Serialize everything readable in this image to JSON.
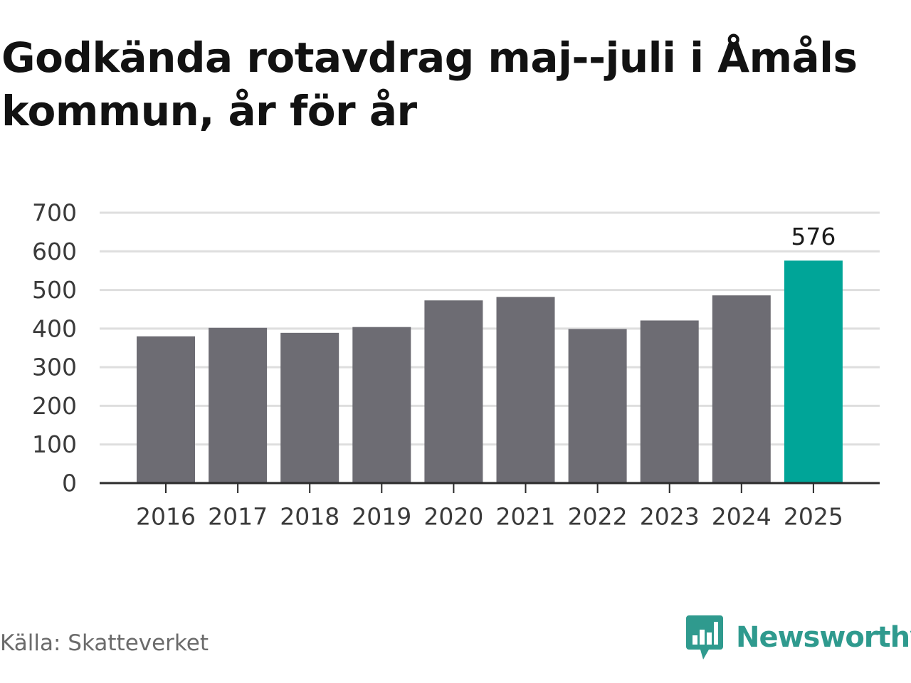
{
  "header": {
    "title": "Godkända rotavdrag maj--juli i Åmåls kommun, år för år"
  },
  "footer": {
    "source": "Källa: Skatteverket",
    "brand": "Newsworthy"
  },
  "colors": {
    "bar": "#6d6c73",
    "highlight": "#00a598",
    "grid": "#dedede",
    "axis": "#2b2b2b",
    "tick_text": "#3a3a3a",
    "brand": "#2f9a8e"
  },
  "icons": {
    "logo": "newsworthy-logo-icon"
  },
  "chart_data": {
    "type": "bar",
    "title": "Godkända rotavdrag maj--juli i Åmåls kommun, år för år",
    "xlabel": "",
    "ylabel": "",
    "categories": [
      "2016",
      "2017",
      "2018",
      "2019",
      "2020",
      "2021",
      "2022",
      "2023",
      "2024",
      "2025"
    ],
    "values": [
      380,
      402,
      389,
      404,
      473,
      482,
      399,
      421,
      486,
      576
    ],
    "ylim": [
      0,
      700
    ],
    "yticks": [
      0,
      100,
      200,
      300,
      400,
      500,
      600,
      700
    ],
    "highlight_category": "2025",
    "data_labels": [
      {
        "category": "2025",
        "label": "576"
      }
    ],
    "grid": true,
    "legend": "none"
  }
}
